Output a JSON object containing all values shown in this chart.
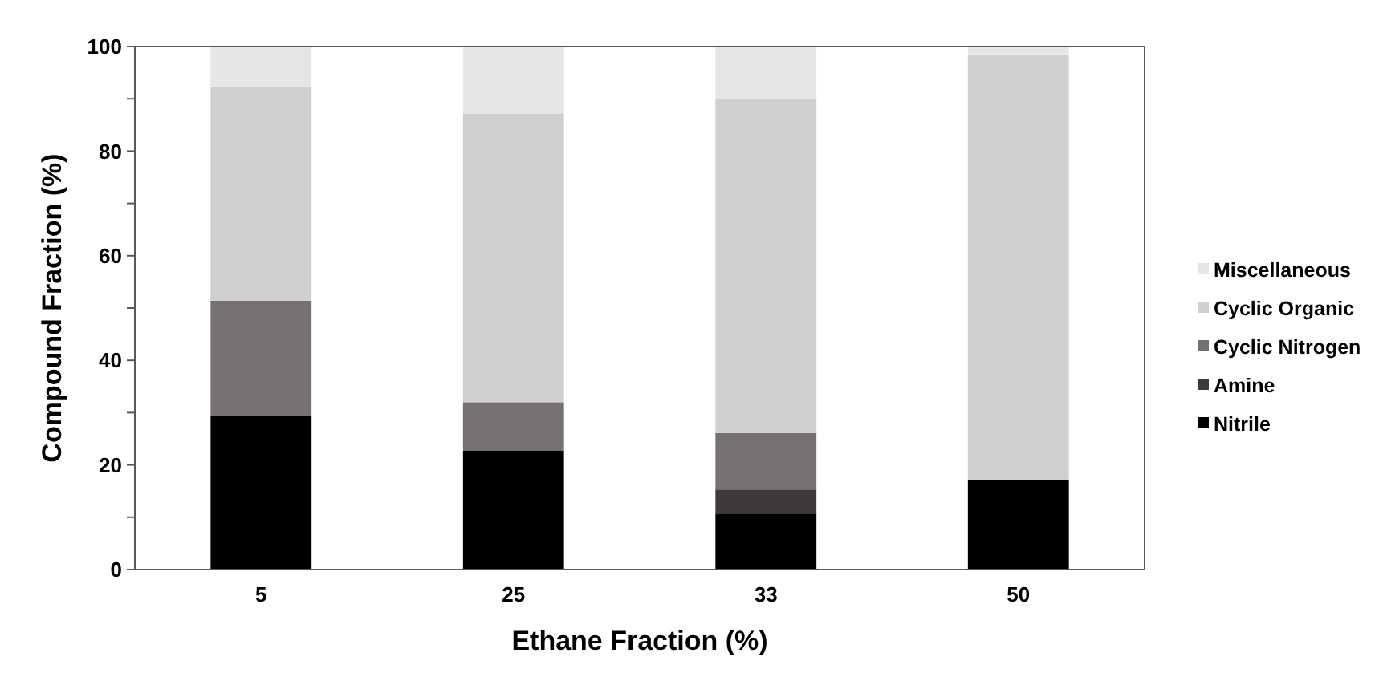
{
  "chart_data": {
    "type": "bar",
    "stacked": true,
    "xlabel": "Ethane Fraction (%)",
    "ylabel": "Compound Fraction (%)",
    "categories": [
      "5",
      "25",
      "33",
      "50"
    ],
    "series": [
      {
        "name": "Nitrile",
        "color": "#000000",
        "values": [
          29.4,
          22.7,
          10.7,
          17.2
        ]
      },
      {
        "name": "Amine",
        "color": "#3d3a39",
        "values": [
          0,
          0,
          4.6,
          0
        ]
      },
      {
        "name": "Cyclic Nitrogen",
        "color": "#767171",
        "values": [
          22.0,
          9.3,
          10.8,
          0
        ]
      },
      {
        "name": "Cyclic Organic",
        "color": "#d0cece",
        "values": [
          40.9,
          55.2,
          63.8,
          81.3
        ]
      },
      {
        "name": "Miscellaneous",
        "color": "#e7e6e6",
        "values": [
          7.7,
          12.8,
          10.1,
          1.5
        ]
      }
    ],
    "ylim": [
      0,
      100
    ],
    "yticks": [
      0,
      {
        "value": 10,
        "label": null
      },
      20,
      {
        "value": 30,
        "label": null
      },
      40,
      {
        "value": 50,
        "label": null
      },
      60,
      {
        "value": 70,
        "label": null
      },
      80,
      {
        "value": 90,
        "label": null
      },
      100
    ],
    "legend": "right"
  }
}
